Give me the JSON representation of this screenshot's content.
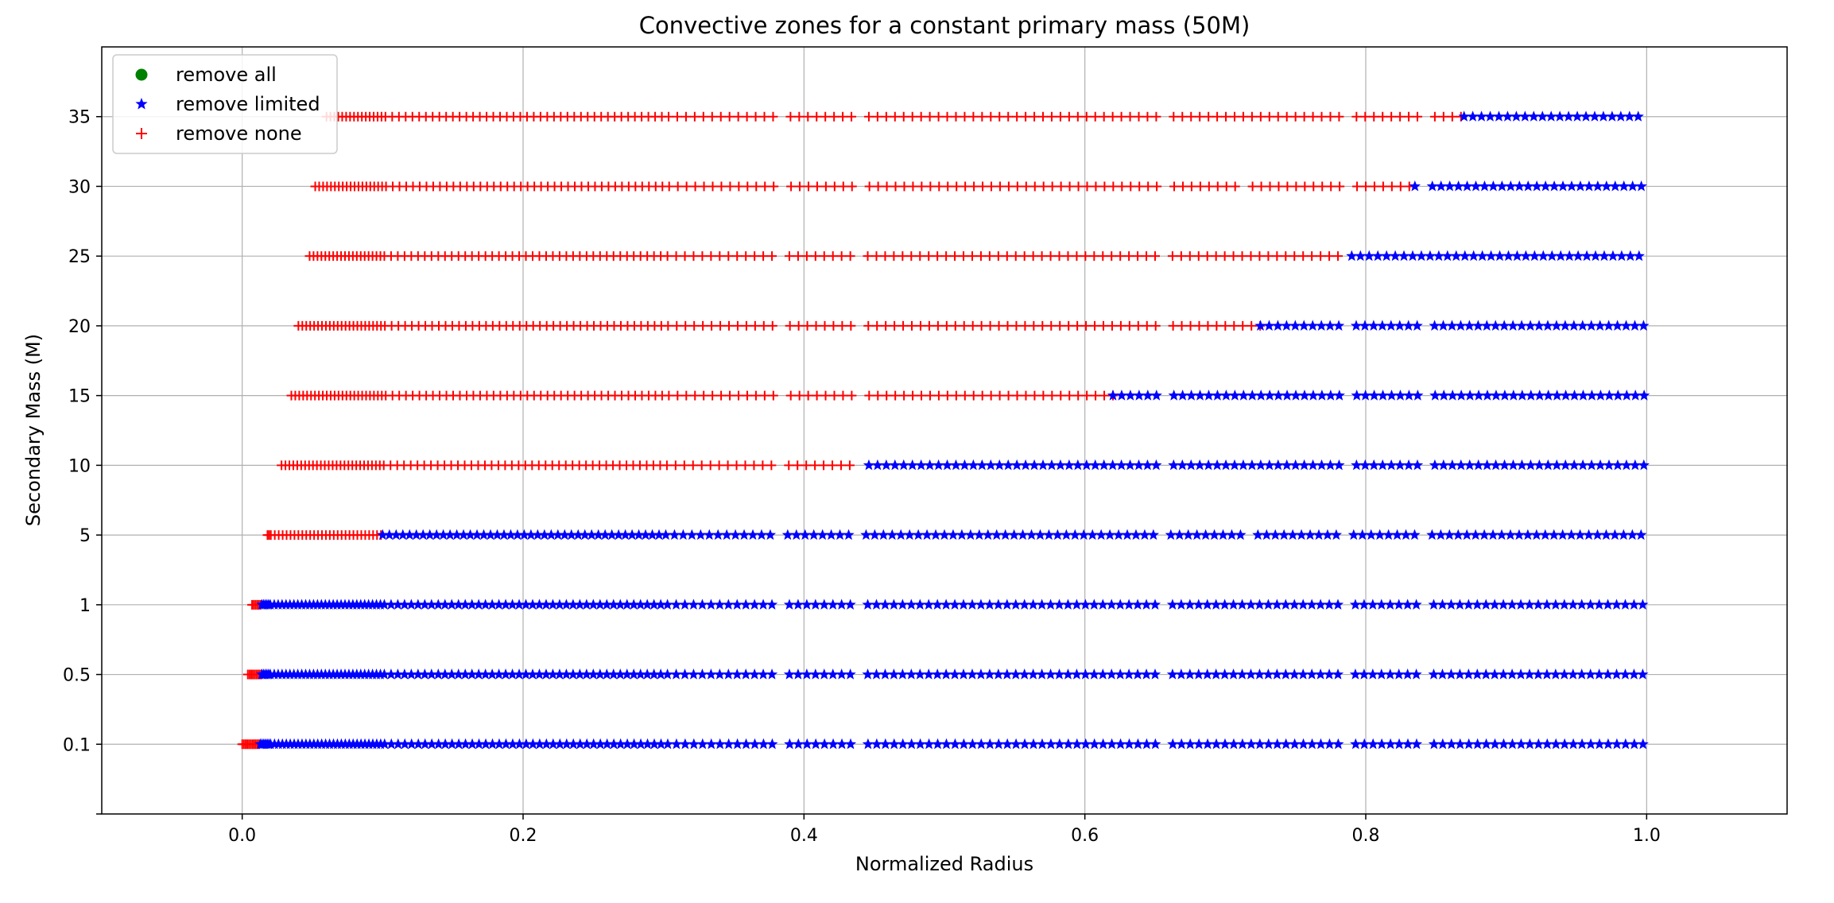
{
  "chart_data": {
    "type": "scatter",
    "title": "Convective zones for a constant primary mass (50M)",
    "xlabel": "Normalized Radius",
    "ylabel": "Secondary Mass (M)",
    "xlim": [
      -0.1,
      1.1
    ],
    "x_ticks": [
      "0.0",
      "0.2",
      "0.4",
      "0.6",
      "0.8",
      "1.0"
    ],
    "x_tick_values": [
      0.0,
      0.2,
      0.4,
      0.6,
      0.8,
      1.0
    ],
    "y_categories": [
      "0.1",
      "0.5",
      "1",
      "5",
      "10",
      "15",
      "20",
      "25",
      "30",
      "35"
    ],
    "grid": true,
    "legend_position": "top-left",
    "legend": [
      {
        "label": "remove all",
        "marker": "circle",
        "color": "#008000"
      },
      {
        "label": "remove limited",
        "marker": "star",
        "color": "#0000ff"
      },
      {
        "label": "remove none",
        "marker": "plus",
        "color": "#ff0000"
      }
    ],
    "series": [
      {
        "secondary_mass": "0.1",
        "remove_none_x_range": [
          0.0,
          0.013
        ],
        "remove_limited_x_range": [
          0.013,
          1.0
        ]
      },
      {
        "secondary_mass": "0.5",
        "remove_none_x_range": [
          0.004,
          0.014
        ],
        "remove_limited_x_range": [
          0.014,
          1.0
        ]
      },
      {
        "secondary_mass": "1",
        "remove_none_x_range": [
          0.007,
          0.014
        ],
        "remove_limited_x_range": [
          0.014,
          1.0
        ]
      },
      {
        "secondary_mass": "5",
        "remove_none_x_range": [
          0.018,
          0.1
        ],
        "remove_limited_x_range": [
          0.1,
          1.0
        ]
      },
      {
        "secondary_mass": "10",
        "remove_none_x_range": [
          0.028,
          0.44
        ],
        "remove_limited_x_range": [
          0.44,
          1.0
        ]
      },
      {
        "secondary_mass": "15",
        "remove_none_x_range": [
          0.035,
          0.62
        ],
        "remove_limited_x_range": [
          0.62,
          1.0
        ]
      },
      {
        "secondary_mass": "20",
        "remove_none_x_range": [
          0.04,
          0.725
        ],
        "remove_limited_x_range": [
          0.725,
          1.0
        ]
      },
      {
        "secondary_mass": "25",
        "remove_none_x_range": [
          0.048,
          0.79
        ],
        "remove_limited_x_range": [
          0.79,
          1.0
        ]
      },
      {
        "secondary_mass": "30",
        "remove_none_x_range": [
          0.052,
          0.835
        ],
        "remove_limited_x_range": [
          0.835,
          1.0
        ]
      },
      {
        "secondary_mass": "35",
        "remove_none_x_range": [
          0.06,
          0.87
        ],
        "remove_limited_x_range": [
          0.87,
          1.0
        ]
      }
    ]
  }
}
